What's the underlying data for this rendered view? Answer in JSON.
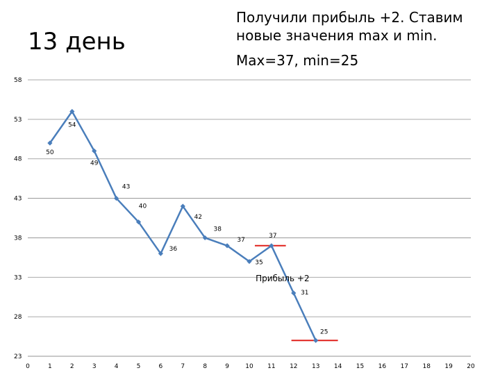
{
  "slide": {
    "title": "13 день",
    "note_line1": "Получили прибыль +2. Ставим новые значения max и min.",
    "note_line2": "Max=37, min=25"
  },
  "chart_data": {
    "type": "line",
    "title": "",
    "xlabel": "",
    "ylabel": "",
    "xlim": [
      0,
      20
    ],
    "ylim": [
      23,
      58
    ],
    "x_ticks": [
      0,
      1,
      2,
      3,
      4,
      5,
      6,
      7,
      8,
      9,
      10,
      11,
      12,
      13,
      14,
      15,
      16,
      17,
      18,
      19,
      20
    ],
    "y_ticks": [
      23,
      28,
      33,
      38,
      43,
      48,
      53,
      58
    ],
    "grid": true,
    "series": [
      {
        "color": "#4a7ebb",
        "x": [
          1,
          2,
          3,
          4,
          5,
          6,
          7,
          8,
          9,
          10,
          11,
          12,
          13
        ],
        "y": [
          50,
          54,
          49,
          43,
          40,
          36,
          42,
          38,
          37,
          35,
          37,
          31,
          25
        ]
      }
    ],
    "data_labels": [
      {
        "x": 1,
        "y": 50,
        "text": "50"
      },
      {
        "x": 2,
        "y": 54,
        "text": "54"
      },
      {
        "x": 3,
        "y": 49,
        "text": "49"
      },
      {
        "x": 4,
        "y": 43,
        "text": "43"
      },
      {
        "x": 5,
        "y": 40,
        "text": "40"
      },
      {
        "x": 6,
        "y": 36,
        "text": "36"
      },
      {
        "x": 7,
        "y": 42,
        "text": "42"
      },
      {
        "x": 8,
        "y": 38,
        "text": "38"
      },
      {
        "x": 9,
        "y": 37,
        "text": "37"
      },
      {
        "x": 10,
        "y": 35,
        "text": "35"
      },
      {
        "x": 11,
        "y": 37,
        "text": "37"
      },
      {
        "x": 12,
        "y": 31,
        "text": "31"
      },
      {
        "x": 13,
        "y": 25,
        "text": "25"
      }
    ],
    "level_lines": [
      {
        "name": "max",
        "y": 37,
        "x_from": 10.25,
        "x_to": 11.65,
        "color": "#e0201b"
      },
      {
        "name": "min",
        "y": 25,
        "x_from": 11.9,
        "x_to": 14.0,
        "color": "#e0201b"
      }
    ],
    "annotations": [
      {
        "text": "Прибыль +2",
        "x": 11.5,
        "y": 32.5
      }
    ]
  }
}
